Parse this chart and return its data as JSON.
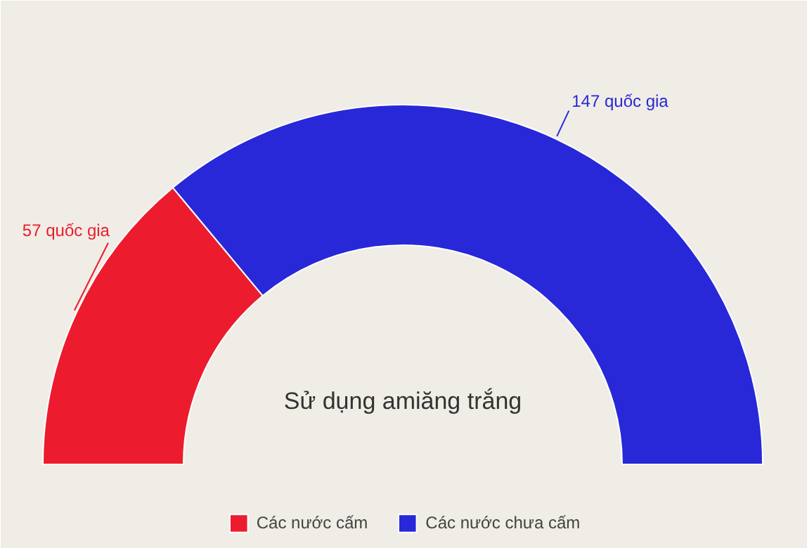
{
  "chart_data": {
    "type": "donut",
    "title": "Sử dụng amiăng trắng",
    "categories": [
      "Các nước cấm",
      "Các nước chưa cấm"
    ],
    "values": [
      57,
      147
    ],
    "colors": [
      "#ec1c2e",
      "#2828d8"
    ],
    "value_labels": [
      "57 quốc gia",
      "147 quốc gia"
    ],
    "legend": "bottom"
  }
}
